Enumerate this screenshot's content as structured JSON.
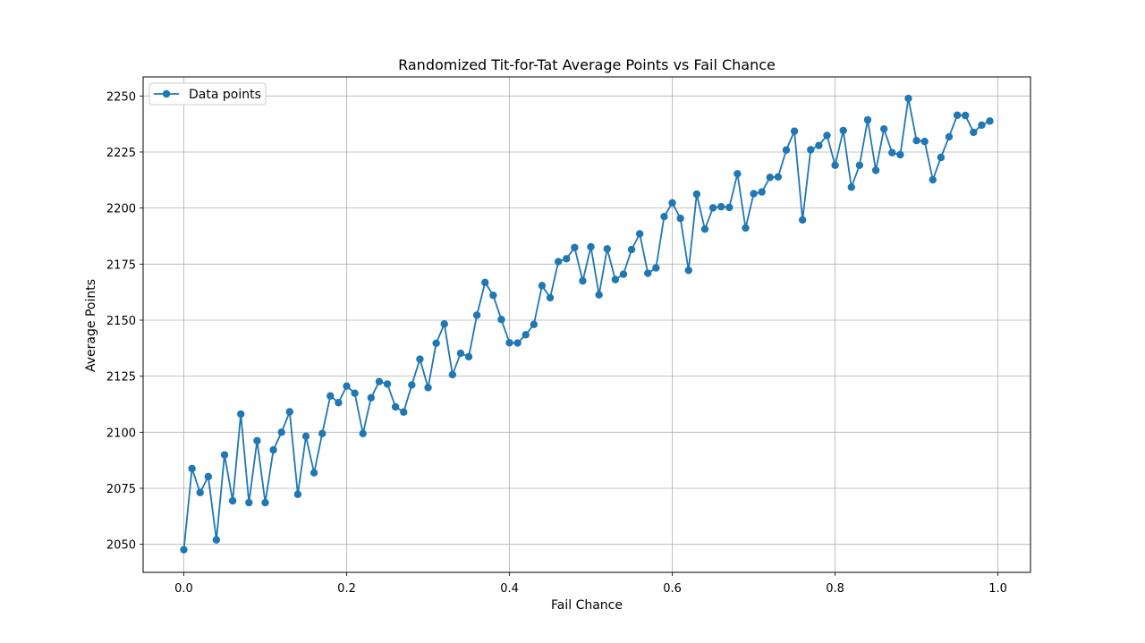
{
  "chart_data": {
    "type": "line",
    "title": "Randomized Tit-for-Tat Average Points vs Fail Chance",
    "xlabel": "Fail Chance",
    "ylabel": "Average Points",
    "xlim": [
      -0.05,
      1.04
    ],
    "ylim": [
      2037.5,
      2258.5
    ],
    "x_ticks": [
      0.0,
      0.2,
      0.4,
      0.6,
      0.8,
      1.0
    ],
    "x_tick_labels": [
      "0.0",
      "0.2",
      "0.4",
      "0.6",
      "0.8",
      "1.0"
    ],
    "y_ticks": [
      2050,
      2075,
      2100,
      2125,
      2150,
      2175,
      2200,
      2225,
      2250
    ],
    "y_tick_labels": [
      "2050",
      "2075",
      "2100",
      "2125",
      "2150",
      "2175",
      "2200",
      "2225",
      "2250"
    ],
    "grid": true,
    "legend": {
      "placement": "upper-left",
      "entries": [
        "Data points"
      ]
    },
    "series": [
      {
        "name": "Data points",
        "color": "#1f77b4",
        "marker": "circle",
        "x": [
          0.0,
          0.01,
          0.02,
          0.03,
          0.04,
          0.05,
          0.06,
          0.07,
          0.08,
          0.09,
          0.1,
          0.11,
          0.12,
          0.13,
          0.14,
          0.15,
          0.16,
          0.17,
          0.18,
          0.19,
          0.2,
          0.21,
          0.22,
          0.23,
          0.24,
          0.25,
          0.26,
          0.27,
          0.28,
          0.29,
          0.3,
          0.31,
          0.32,
          0.33,
          0.34,
          0.35,
          0.36,
          0.37,
          0.38,
          0.39,
          0.4,
          0.41,
          0.42,
          0.43,
          0.44,
          0.45,
          0.46,
          0.47,
          0.48,
          0.49,
          0.5,
          0.51,
          0.52,
          0.53,
          0.54,
          0.55,
          0.56,
          0.57,
          0.58,
          0.59,
          0.6,
          0.61,
          0.62,
          0.63,
          0.64,
          0.65,
          0.66,
          0.67,
          0.68,
          0.69,
          0.7,
          0.71,
          0.72,
          0.73,
          0.74,
          0.75,
          0.76,
          0.77,
          0.78,
          0.79,
          0.8,
          0.81,
          0.82,
          0.83,
          0.84,
          0.85,
          0.86,
          0.87,
          0.88,
          0.89,
          0.9,
          0.91,
          0.92,
          0.93,
          0.94,
          0.95,
          0.96,
          0.97,
          0.98,
          0.99
        ],
        "y": [
          2047.6,
          2083.8,
          2073.1,
          2080.2,
          2052.0,
          2089.9,
          2069.4,
          2108.1,
          2068.6,
          2096.2,
          2068.6,
          2092.1,
          2100.0,
          2109.1,
          2072.3,
          2098.2,
          2081.9,
          2099.4,
          2116.2,
          2113.2,
          2120.6,
          2117.4,
          2099.4,
          2115.4,
          2122.6,
          2121.5,
          2111.3,
          2109.0,
          2121.1,
          2132.6,
          2119.9,
          2139.7,
          2148.3,
          2125.7,
          2135.2,
          2133.7,
          2152.2,
          2166.8,
          2161.1,
          2150.3,
          2139.9,
          2139.8,
          2143.5,
          2148.1,
          2165.4,
          2160.0,
          2176.1,
          2177.4,
          2182.4,
          2167.5,
          2182.7,
          2161.3,
          2181.8,
          2168.1,
          2170.5,
          2181.5,
          2188.5,
          2170.9,
          2173.3,
          2196.2,
          2202.3,
          2195.4,
          2172.2,
          2206.2,
          2190.6,
          2200.1,
          2200.6,
          2200.3,
          2215.3,
          2191.1,
          2206.4,
          2207.2,
          2213.7,
          2213.9,
          2225.9,
          2234.3,
          2194.7,
          2226.0,
          2227.9,
          2232.4,
          2219.1,
          2234.6,
          2209.3,
          2219.1,
          2239.3,
          2216.8,
          2235.3,
          2224.7,
          2223.8,
          2248.9,
          2230.1,
          2229.7,
          2212.6,
          2222.6,
          2231.8,
          2241.4,
          2241.3,
          2233.8,
          2237.0,
          2238.8
        ]
      }
    ]
  }
}
